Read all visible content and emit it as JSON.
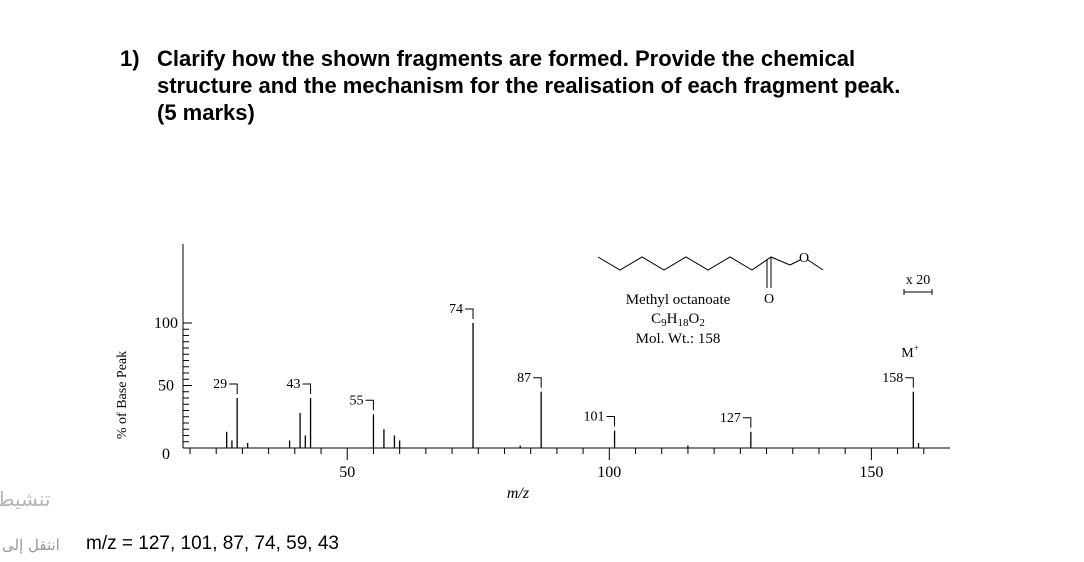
{
  "question": {
    "number": "1)",
    "line1": "Clarify how the shown fragments are formed. Provide the chemical",
    "line2": "structure and the mechanism for the realisation of each fragment peak.",
    "line3": "(5 marks)"
  },
  "overlay": {
    "text1": "تنشيط",
    "text2": "انتقل إلى"
  },
  "mz_list": "m/z = 127, 101, 87, 74, 59, 43",
  "chart_data": {
    "type": "bar",
    "xlabel": "m/z",
    "ylabel": "% of Base Peak",
    "xlim": [
      20,
      165
    ],
    "ylim": [
      0,
      130
    ],
    "x_ticks": [
      "50",
      "100",
      "150"
    ],
    "y_ticks": [
      "0",
      "50",
      "100"
    ],
    "compound": {
      "name": "Methyl octanoate",
      "formula": "C9H18O2",
      "mol_wt": "Mol. Wt.: 158"
    },
    "scale_note": "x 20",
    "molecular_ion_label": "M",
    "peaks": [
      {
        "mz": 27,
        "value": 13
      },
      {
        "mz": 28,
        "value": 6
      },
      {
        "mz": 29,
        "value": 40,
        "label": "29"
      },
      {
        "mz": 31,
        "value": 4
      },
      {
        "mz": 39,
        "value": 6
      },
      {
        "mz": 41,
        "value": 28
      },
      {
        "mz": 42,
        "value": 10
      },
      {
        "mz": 43,
        "value": 40,
        "label": "43"
      },
      {
        "mz": 55,
        "value": 27,
        "label": "55"
      },
      {
        "mz": 57,
        "value": 15
      },
      {
        "mz": 59,
        "value": 10
      },
      {
        "mz": 60,
        "value": 6
      },
      {
        "mz": 74,
        "value": 100,
        "label": "74"
      },
      {
        "mz": 83,
        "value": 2
      },
      {
        "mz": 87,
        "value": 45,
        "label": "87"
      },
      {
        "mz": 101,
        "value": 14,
        "label": "101"
      },
      {
        "mz": 115,
        "value": 2
      },
      {
        "mz": 127,
        "value": 13,
        "label": "127"
      },
      {
        "mz": 158,
        "value": 45,
        "label": "158"
      },
      {
        "mz": 159,
        "value": 4
      }
    ]
  }
}
